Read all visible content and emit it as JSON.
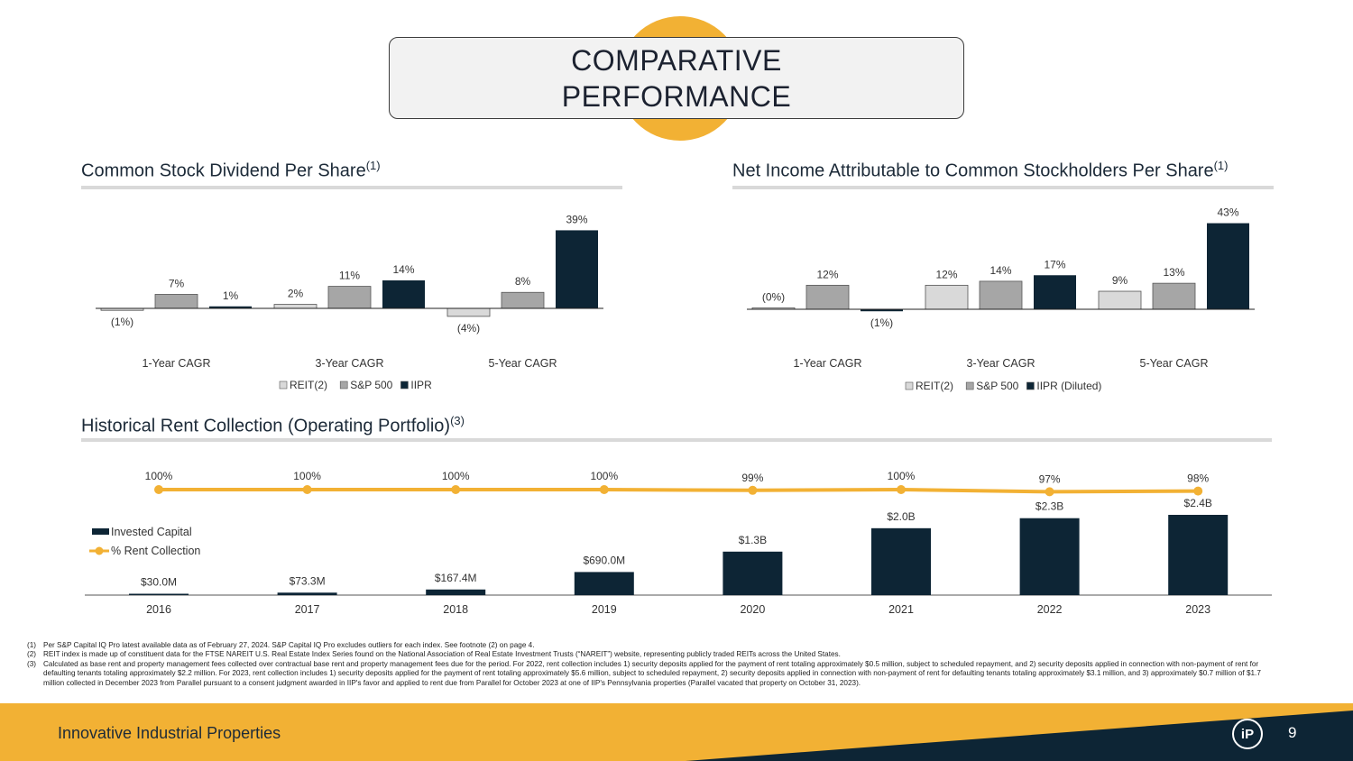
{
  "header": {
    "title_line1": "COMPARATIVE",
    "title_line2": "PERFORMANCE"
  },
  "dividend": {
    "title": "Common Stock Dividend Per Share",
    "sup": "(1)"
  },
  "net_income": {
    "title": "Net Income Attributable to Common Stockholders Per Share",
    "sup": "(1)"
  },
  "rent": {
    "title": "Historical Rent Collection (Operating Portfolio)",
    "sup": "(3)"
  },
  "colors": {
    "reit": "#d9d9d9",
    "sp500": "#a6a6a6",
    "iipr": "#0d2535",
    "accent": "#f2b134",
    "navy": "#0d2535"
  },
  "chart_data": [
    {
      "type": "bar",
      "title": "Common Stock Dividend Per Share(1)",
      "categories": [
        "1-Year CAGR",
        "3-Year CAGR",
        "5-Year CAGR"
      ],
      "series": [
        {
          "name": "REIT(2)",
          "values": [
            -1,
            2,
            -4
          ],
          "labels": [
            "(1%)",
            "2%",
            "(4%)"
          ]
        },
        {
          "name": "S&P 500",
          "values": [
            7,
            11,
            8
          ],
          "labels": [
            "7%",
            "11%",
            "8%"
          ]
        },
        {
          "name": "IIPR",
          "values": [
            1,
            14,
            39
          ],
          "labels": [
            "1%",
            "14%",
            "39%"
          ]
        }
      ]
    },
    {
      "type": "bar",
      "title": "Net Income Attributable to Common Stockholders Per Share(1)",
      "categories": [
        "1-Year CAGR",
        "3-Year CAGR",
        "5-Year CAGR"
      ],
      "series": [
        {
          "name": "REIT(2)",
          "values": [
            0,
            12,
            9
          ],
          "labels": [
            "(0%)",
            "12%",
            "9%"
          ]
        },
        {
          "name": "S&P 500",
          "values": [
            12,
            14,
            13
          ],
          "labels": [
            "12%",
            "14%",
            "13%"
          ]
        },
        {
          "name": "IIPR (Diluted)",
          "values": [
            -1,
            17,
            43
          ],
          "labels": [
            "(1%)",
            "17%",
            "43%"
          ]
        }
      ]
    },
    {
      "type": "bar",
      "title": "Historical Rent Collection (Operating Portfolio)(3)",
      "categories": [
        "2016",
        "2017",
        "2018",
        "2019",
        "2020",
        "2021",
        "2022",
        "2023"
      ],
      "series": [
        {
          "name": "Invested Capital",
          "values": [
            30.0,
            73.3,
            167.4,
            690.0,
            1300,
            2000,
            2300,
            2400
          ],
          "unit": "$M",
          "labels": [
            "$30.0M",
            "$73.3M",
            "$167.4M",
            "$690.0M",
            "$1.3B",
            "$2.0B",
            "$2.3B",
            "$2.4B"
          ]
        },
        {
          "name": "% Rent Collection",
          "type": "line",
          "values": [
            100,
            100,
            100,
            100,
            99,
            100,
            97,
            98
          ],
          "labels": [
            "100%",
            "100%",
            "100%",
            "100%",
            "99%",
            "100%",
            "97%",
            "98%"
          ]
        }
      ]
    }
  ],
  "footnotes": [
    {
      "num": "(1)",
      "text": "Per S&P Capital IQ Pro latest available data as of February 27, 2024. S&P Capital IQ Pro excludes outliers for each index. See footnote (2) on page 4."
    },
    {
      "num": "(2)",
      "text": "REIT index is made up of constituent data for the FTSE NAREIT U.S. Real Estate Index Series found on the National Association of Real Estate Investment Trusts (“NAREIT”) website, representing publicly traded REITs across the United States."
    },
    {
      "num": "(3)",
      "text": "Calculated as base rent and property management fees collected over contractual base rent and property management fees due for the period. For 2022, rent collection includes 1) security deposits applied for the payment of rent totaling approximately $0.5 million, subject to scheduled repayment, and 2) security deposits applied in connection with non-payment of rent for defaulting tenants totaling approximately $2.2 million.  For 2023, rent collection includes 1) security deposits applied for the payment of rent totaling approximately $5.6 million, subject to scheduled repayment, 2) security deposits applied in connection with non-payment of rent for defaulting tenants totaling approximately $3.1 million, and 3) approximately $0.7 million of $1.7 million collected in December 2023 from Parallel pursuant to a consent judgment awarded in IIP's favor and applied to rent due from Parallel for October 2023 at one of IIP's Pennsylvania properties (Parallel vacated that property on October 31, 2023)."
    }
  ],
  "footer": {
    "company": "Innovative Industrial Properties",
    "page": "9",
    "logo_text": "iP",
    "logo_icon": "iip-logo-icon"
  }
}
